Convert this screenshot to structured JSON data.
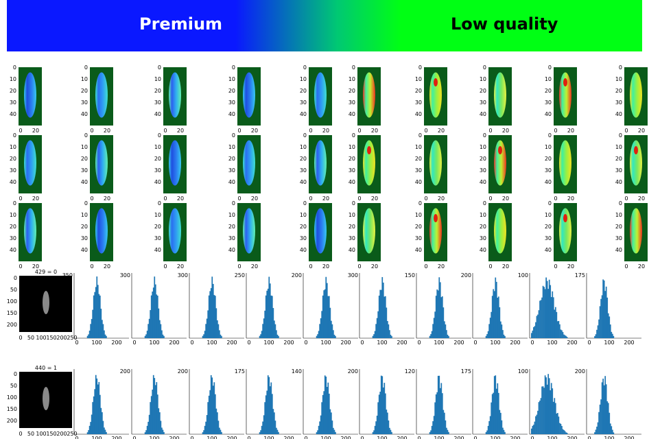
{
  "banner": {
    "premium_label": "Premium",
    "low_quality_label": "Low quality",
    "colors": {
      "premium": "#0a18ff",
      "low_quality": "#00ff14"
    }
  },
  "heatmap_grid": {
    "y_ticks": [
      "0",
      "10",
      "20",
      "30",
      "40"
    ],
    "x_ticks": [
      "0",
      "20"
    ],
    "rows": 3,
    "columns": 10,
    "background_color": "#0a5b1a"
  },
  "histogram_rows": [
    {
      "sample_title": "429 = 0",
      "sample_y_ticks": [
        "0",
        "50",
        "100",
        "150",
        "200"
      ],
      "sample_x_ticks": [
        "0",
        "50",
        "100",
        "150",
        "200",
        "250"
      ],
      "hist_y_top_labels": [
        "350",
        "300",
        "300",
        "250",
        "200",
        "300",
        "150",
        "200",
        "100",
        "175"
      ],
      "hist_x_ticks": [
        "0",
        "100",
        "200"
      ]
    },
    {
      "sample_title": "440 = 1",
      "sample_y_ticks": [
        "0",
        "50",
        "100",
        "150",
        "200"
      ],
      "sample_x_ticks": [
        "0",
        "50",
        "100",
        "150",
        "200",
        "250"
      ],
      "hist_y_top_labels": [
        "",
        "200",
        "200",
        "175",
        "140",
        "200",
        "120",
        "175",
        "100",
        "200"
      ],
      "hist_x_ticks": [
        "0",
        "100",
        "200"
      ]
    }
  ],
  "histogram_color": "#1f77b4"
}
